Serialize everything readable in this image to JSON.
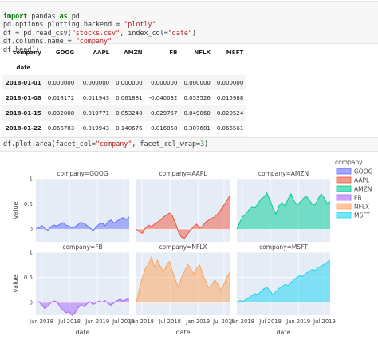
{
  "cell1": {
    "lines": [
      {
        "kw": "import",
        "rest": " pandas ",
        "kw2": "as",
        "rest2": " pd"
      },
      {
        "text": "pd.options.plotting.backend = ",
        "str": "\"plotly\""
      },
      {
        "text": "df = pd.read_csv(",
        "str": "\"stocks.csv\"",
        "text2": ", index_col=",
        "str2": "\"date\"",
        "text3": ")"
      },
      {
        "text": "df.columns.name = ",
        "str": "\"company\""
      },
      {
        "text": "df.head()"
      }
    ]
  },
  "table": {
    "index_label": "company",
    "index_name": "date",
    "columns": [
      "GOOG",
      "AAPL",
      "AMZN",
      "FB",
      "NFLX",
      "MSFT"
    ],
    "rows": [
      {
        "date": "2018-01-01",
        "values": [
          "0.000000",
          "0.000000",
          "0.000000",
          "0.000000",
          "0.000000",
          "0.000000"
        ]
      },
      {
        "date": "2018-01-08",
        "values": [
          "0.018172",
          "0.011943",
          "0.061881",
          "-0.040032",
          "0.053526",
          "0.015988"
        ]
      },
      {
        "date": "2018-01-15",
        "values": [
          "0.032008",
          "0.019771",
          "0.053240",
          "-0.029757",
          "0.049860",
          "0.020524"
        ]
      },
      {
        "date": "2018-01-22",
        "values": [
          "0.066783",
          "-0.019943",
          "0.140676",
          "0.016858",
          "0.307681",
          "0.066561"
        ]
      },
      {
        "date": "2018-01-29",
        "values": [
          "0.008773",
          "-0.082857",
          "0.163374",
          "0.018357",
          "0.273537",
          "0.040708"
        ]
      }
    ]
  },
  "cell2": {
    "text": "df.plot.area(facet_col=",
    "str": "\"company\"",
    "text2": ", facet_col_wrap=",
    "num": "3",
    "text3": ")"
  },
  "chart_data": {
    "type": "area",
    "facet_titles": [
      "company=GOOG",
      "company=AAPL",
      "company=AMZN",
      "company=FB",
      "company=NFLX",
      "company=MSFT"
    ],
    "ylabel": "value",
    "xlabel": "date",
    "x_ticks": [
      "Jan 2018",
      "Jul 2018",
      "Jan 2019",
      "Jul 2019"
    ],
    "y_ticks": [
      "0",
      "0.5",
      "1"
    ],
    "ylim": [
      -0.25,
      1.0
    ],
    "legend_title": "company",
    "legend_position": "right",
    "series": [
      {
        "name": "GOOG",
        "color": "#636efa",
        "values": [
          0,
          0.03,
          0.07,
          0.01,
          -0.02,
          0.05,
          0.08,
          0.06,
          0.1,
          0.13,
          0.08,
          0.06,
          0.03,
          0.05,
          0.09,
          0.14,
          0.11,
          0.07,
          0.02,
          -0.03,
          0.04,
          0.1,
          0.12,
          0.07,
          0.15,
          0.18,
          0.12,
          0.16,
          0.2,
          0.23,
          0.19,
          0.24
        ]
      },
      {
        "name": "AAPL",
        "color": "#ef553b",
        "values": [
          0,
          -0.05,
          -0.08,
          0.02,
          0.08,
          0.05,
          0.1,
          0.14,
          0.18,
          0.24,
          0.28,
          0.32,
          0.26,
          0.12,
          -0.06,
          -0.16,
          -0.18,
          -0.1,
          -0.02,
          0.05,
          0.1,
          0.02,
          0.06,
          0.14,
          0.18,
          0.22,
          0.24,
          0.3,
          0.38,
          0.47,
          0.56,
          0.66
        ]
      },
      {
        "name": "AMZN",
        "color": "#00cc96",
        "values": [
          0,
          0.14,
          0.25,
          0.3,
          0.38,
          0.45,
          0.43,
          0.5,
          0.6,
          0.64,
          0.72,
          0.58,
          0.42,
          0.3,
          0.46,
          0.53,
          0.45,
          0.6,
          0.7,
          0.56,
          0.48,
          0.54,
          0.6,
          0.66,
          0.58,
          0.5,
          0.48,
          0.6,
          0.7,
          0.62,
          0.51,
          0.55
        ]
      },
      {
        "name": "FB",
        "color": "#ab63fa",
        "values": [
          0,
          0.02,
          -0.05,
          -0.12,
          -0.06,
          0.0,
          0.03,
          0.02,
          -0.08,
          -0.15,
          -0.2,
          -0.18,
          -0.25,
          -0.2,
          -0.1,
          -0.05,
          -0.08,
          -0.02,
          0.02,
          -0.04,
          0.0,
          0.03,
          0.01,
          0.04,
          -0.02,
          -0.05,
          0.0,
          0.04,
          0.07,
          0.03,
          0.06,
          0.09
        ]
      },
      {
        "name": "NFLX",
        "color": "#ffa15a",
        "values": [
          0,
          0.27,
          0.5,
          0.68,
          0.76,
          0.9,
          0.7,
          0.84,
          0.72,
          0.6,
          0.74,
          0.82,
          0.62,
          0.45,
          0.3,
          0.5,
          0.62,
          0.76,
          0.7,
          0.56,
          0.68,
          0.75,
          0.58,
          0.42,
          0.3,
          0.35,
          0.45,
          0.38,
          0.25,
          0.35,
          0.5,
          0.6
        ]
      },
      {
        "name": "MSFT",
        "color": "#19d3f3",
        "values": [
          0,
          0.04,
          0.02,
          0.06,
          0.1,
          0.14,
          0.18,
          0.16,
          0.22,
          0.28,
          0.3,
          0.24,
          0.15,
          0.22,
          0.28,
          0.32,
          0.36,
          0.34,
          0.4,
          0.46,
          0.5,
          0.54,
          0.52,
          0.58,
          0.62,
          0.66,
          0.64,
          0.7,
          0.72,
          0.76,
          0.8,
          0.84
        ]
      }
    ]
  }
}
